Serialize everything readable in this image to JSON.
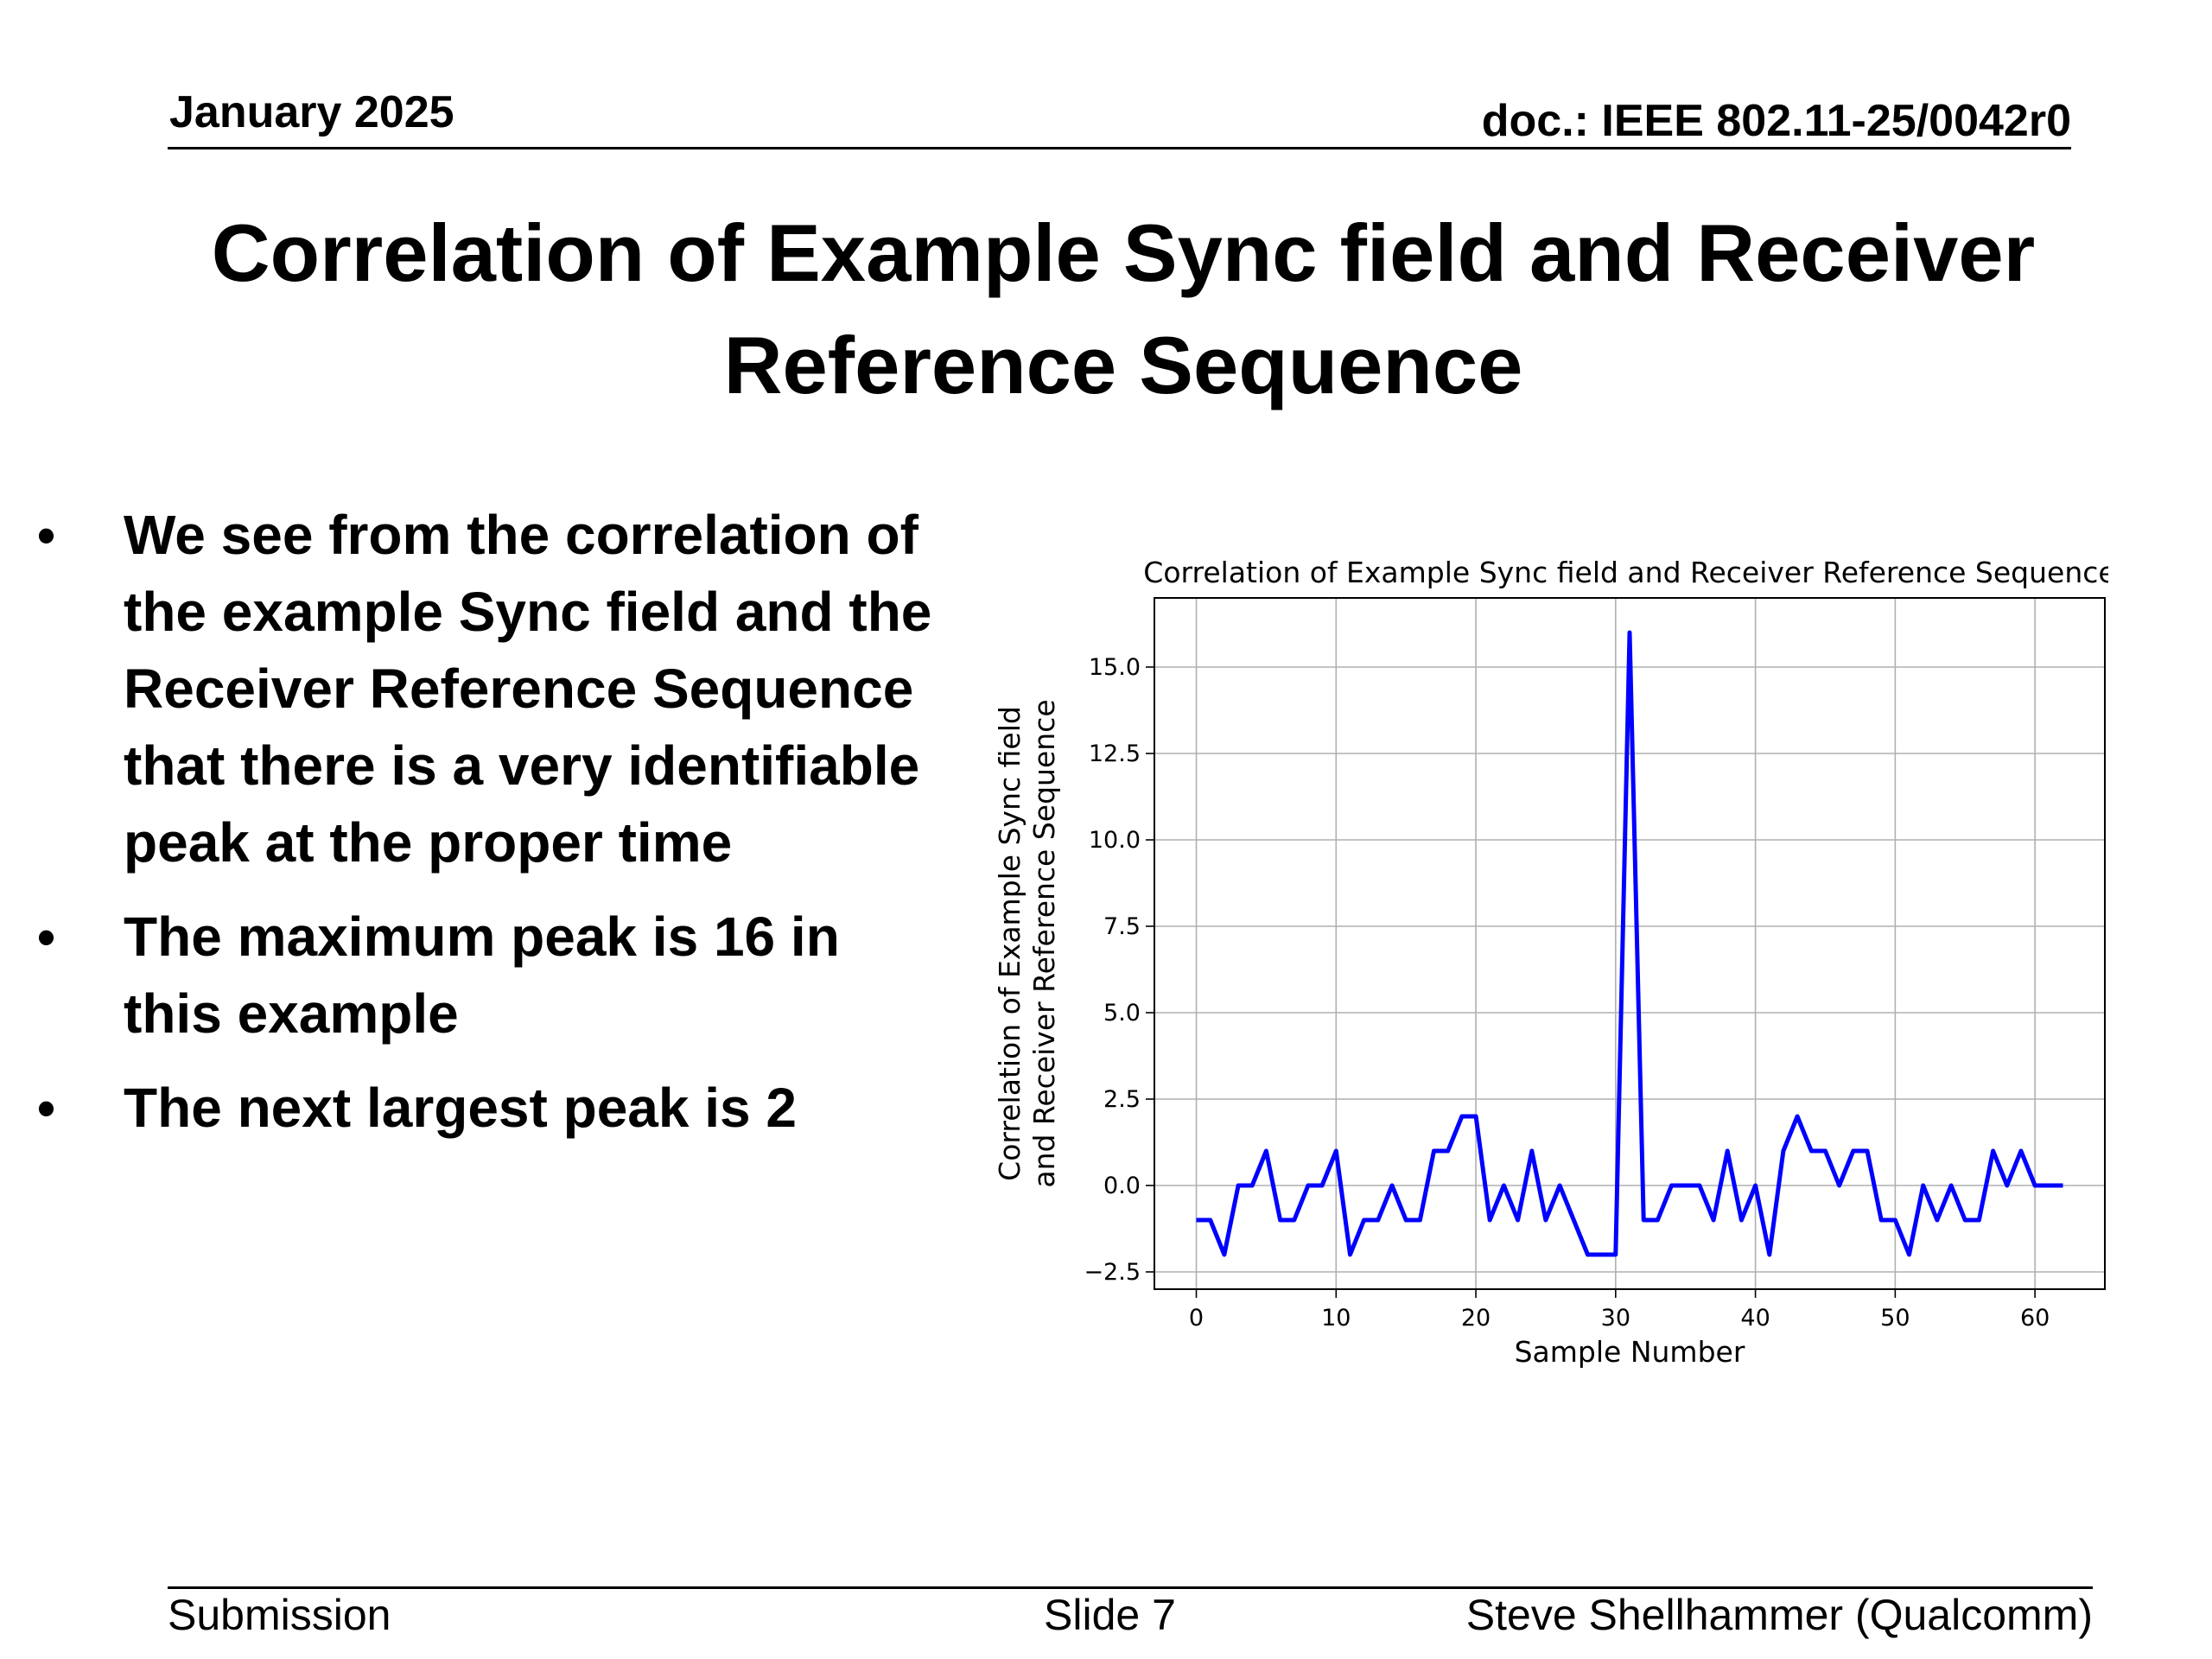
{
  "header": {
    "date": "January 2025",
    "doc": "doc.: IEEE 802.11-25/0042r0"
  },
  "slide_title": "Correlation of Example Sync field and Receiver Reference Sequence",
  "bullets": [
    "We see from the correlation of the example Sync field and the Receiver Reference Sequence that there is a very identifiable peak at the proper time",
    "The maximum peak is 16 in this example",
    "The next largest peak is 2"
  ],
  "bullet_glyph": "•",
  "footer": {
    "left": "Submission",
    "center": "Slide 7",
    "right": "Steve Shellhammer (Qualcomm)"
  },
  "chart_data": {
    "type": "line",
    "title": "Correlation of Example Sync field and Receiver Reference Sequence",
    "xlabel": "Sample Number",
    "ylabel": [
      "Correlation of Example Sync field",
      "and Receiver Reference Sequence"
    ],
    "xlim": [
      -3,
      65
    ],
    "ylim": [
      -3,
      17
    ],
    "xticks": [
      0,
      10,
      20,
      30,
      40,
      50,
      60
    ],
    "yticks": [
      -2.5,
      0.0,
      2.5,
      5.0,
      7.5,
      10.0,
      12.5,
      15.0
    ],
    "ytick_labels": [
      "−2.5",
      "0.0",
      "2.5",
      "5.0",
      "7.5",
      "10.0",
      "12.5",
      "15.0"
    ],
    "grid": true,
    "color": "#0000ff",
    "series": [
      {
        "x": [
          0,
          1,
          2,
          3,
          4,
          5,
          6,
          7,
          8,
          9,
          10,
          11,
          12,
          13,
          14,
          15,
          16,
          17,
          18,
          19,
          20,
          21,
          22,
          23,
          24,
          25,
          26,
          27,
          28,
          29,
          30,
          31,
          32,
          33,
          34,
          35,
          36,
          37,
          38,
          39,
          40,
          41,
          42,
          43,
          44,
          45,
          46,
          47,
          48,
          49,
          50,
          51,
          52,
          53,
          54,
          55,
          56,
          57,
          58,
          59,
          60,
          61,
          62
        ],
        "values": [
          -1,
          -1,
          -2,
          0,
          0,
          1,
          -1,
          -1,
          0,
          0,
          1,
          -2,
          -1,
          -1,
          0,
          -1,
          -1,
          1,
          1,
          2,
          2,
          -1,
          0,
          -1,
          1,
          -1,
          0,
          -1,
          -2,
          -2,
          -2,
          16,
          -1,
          -1,
          0,
          0,
          0,
          -1,
          1,
          -1,
          0,
          -2,
          1,
          2,
          1,
          1,
          0,
          1,
          1,
          -1,
          -1,
          -2,
          0,
          -1,
          0,
          -1,
          -1,
          1,
          0,
          1,
          0,
          0,
          0
        ]
      }
    ]
  }
}
